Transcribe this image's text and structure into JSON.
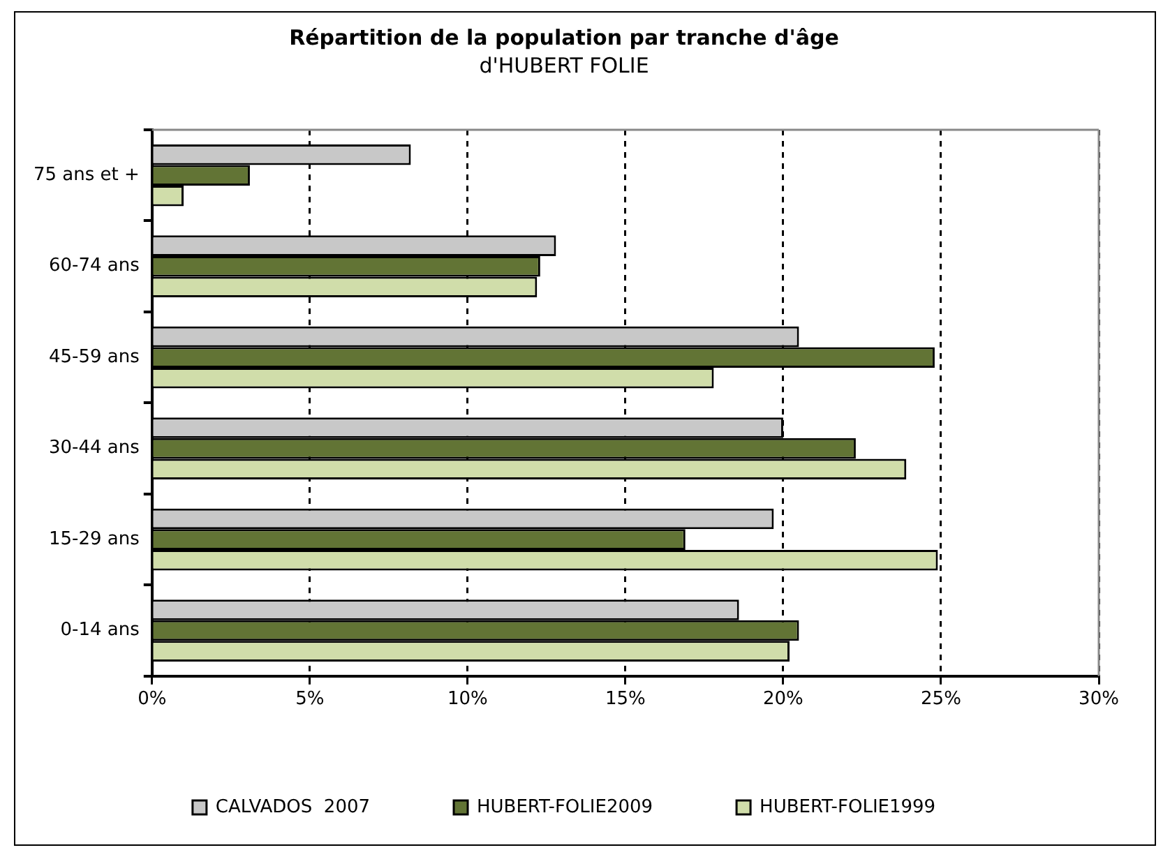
{
  "chart_data": {
    "type": "bar",
    "orientation": "horizontal",
    "title": "Répartition de la population par tranche d'âge",
    "subtitle": "d'HUBERT FOLIE",
    "categories": [
      "75 ans et +",
      "60-74 ans",
      "45-59 ans",
      "30-44 ans",
      "15-29 ans",
      "0-14 ans"
    ],
    "series": [
      {
        "name": "CALVADOS  2007",
        "color": "#c8c8c8",
        "values": [
          8.2,
          12.8,
          20.5,
          20.0,
          19.7,
          18.6
        ]
      },
      {
        "name": "HUBERT-FOLIE2009",
        "color": "#627435",
        "values": [
          3.1,
          12.3,
          24.8,
          22.3,
          16.9,
          20.5
        ]
      },
      {
        "name": "HUBERT-FOLIE1999",
        "color": "#d0ddaa",
        "values": [
          1.0,
          12.2,
          17.8,
          23.9,
          24.9,
          20.2
        ]
      }
    ],
    "xlim": [
      0,
      30
    ],
    "xticks": [
      {
        "value": 0,
        "label": "0%"
      },
      {
        "value": 5,
        "label": "5%"
      },
      {
        "value": 10,
        "label": "10%"
      },
      {
        "value": 15,
        "label": "15%"
      },
      {
        "value": 20,
        "label": "20%"
      },
      {
        "value": 25,
        "label": "25%"
      },
      {
        "value": 30,
        "label": "30%"
      }
    ],
    "grid": "x",
    "legend": "bottom"
  }
}
